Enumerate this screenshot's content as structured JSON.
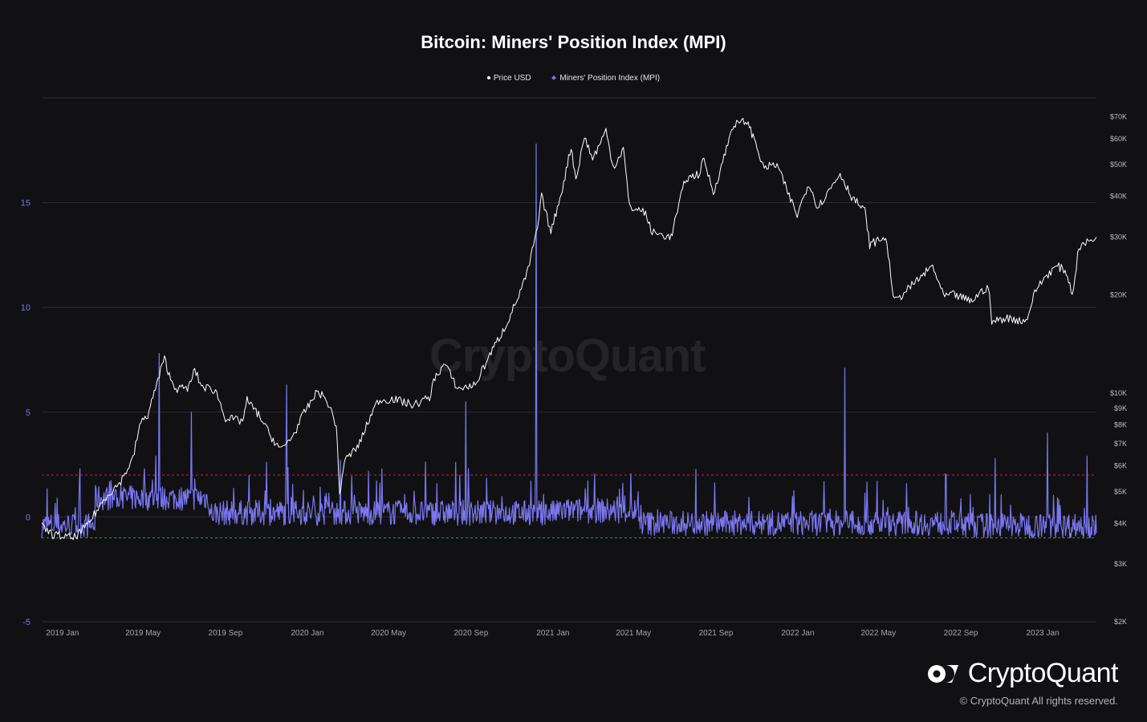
{
  "title": "Bitcoin: Miners' Position Index (MPI)",
  "legend": [
    {
      "label": "Price USD",
      "color": "#ffffff"
    },
    {
      "label": "Miners' Position Index (MPI)",
      "color": "#7b76f0"
    }
  ],
  "watermark": "CryptoQuant",
  "brand": {
    "name": "CryptoQuant",
    "copyright": "© CryptoQuant All rights reserved."
  },
  "colors": {
    "background": "#111114",
    "mpi": "#7b76f0",
    "price": "#ffffff",
    "upper_threshold": "#b03030",
    "lower_threshold": "#3d8f3d",
    "grid": "#2e2e33"
  },
  "chart_data": {
    "type": "line",
    "title": "Bitcoin: Miners' Position Index (MPI)",
    "x_range": [
      "2018-12-25",
      "2023-04-15"
    ],
    "x_tick_labels": [
      "2019 Jan",
      "2019 May",
      "2019 Sep",
      "2020 Jan",
      "2020 May",
      "2020 Sep",
      "2021 Jan",
      "2021 May",
      "2021 Sep",
      "2022 Jan",
      "2022 May",
      "2022 Sep",
      "2023 Jan"
    ],
    "x_tick_dates": [
      "2019-01-01",
      "2019-05-01",
      "2019-09-01",
      "2020-01-01",
      "2020-05-01",
      "2020-09-01",
      "2021-01-01",
      "2021-05-01",
      "2021-09-01",
      "2022-01-01",
      "2022-05-01",
      "2022-09-01",
      "2023-01-01"
    ],
    "y_left": {
      "label": "",
      "ticks": [
        15,
        10,
        5,
        0,
        -5
      ],
      "range": [
        -5,
        20
      ]
    },
    "y_right": {
      "label": "",
      "scale": "log",
      "range": [
        2000,
        80000
      ],
      "ticks": [
        70000,
        60000,
        50000,
        40000,
        30000,
        20000,
        10000,
        9000,
        8000,
        7000,
        6000,
        5000,
        4000,
        3000,
        2000
      ],
      "tick_labels": [
        "$70K",
        "$60K",
        "$50K",
        "$40K",
        "$30K",
        "$20K",
        "$10K",
        "$9K",
        "$8K",
        "$7K",
        "$6K",
        "$5K",
        "$4K",
        "$3K",
        "$2K"
      ]
    },
    "threshold_lines": [
      2,
      -1
    ],
    "grid": true,
    "legend_position": "top-center",
    "series": [
      {
        "name": "Price USD",
        "axis": "right",
        "points": [
          [
            "2018-12-25",
            3900
          ],
          [
            "2019-01-10",
            3700
          ],
          [
            "2019-02-10",
            3600
          ],
          [
            "2019-03-01",
            3900
          ],
          [
            "2019-04-02",
            4900
          ],
          [
            "2019-04-20",
            5300
          ],
          [
            "2019-05-10",
            6300
          ],
          [
            "2019-05-20",
            8000
          ],
          [
            "2019-06-01",
            8600
          ],
          [
            "2019-06-26",
            12800
          ],
          [
            "2019-07-05",
            11000
          ],
          [
            "2019-07-15",
            10300
          ],
          [
            "2019-08-01",
            10400
          ],
          [
            "2019-08-10",
            11800
          ],
          [
            "2019-08-20",
            10500
          ],
          [
            "2019-09-10",
            10200
          ],
          [
            "2019-09-25",
            8400
          ],
          [
            "2019-10-20",
            8200
          ],
          [
            "2019-10-27",
            9500
          ],
          [
            "2019-11-15",
            8500
          ],
          [
            "2019-12-01",
            7400
          ],
          [
            "2019-12-17",
            6700
          ],
          [
            "2020-01-05",
            7500
          ],
          [
            "2020-01-20",
            8700
          ],
          [
            "2020-02-10",
            10200
          ],
          [
            "2020-02-25",
            9300
          ],
          [
            "2020-03-08",
            8000
          ],
          [
            "2020-03-13",
            4900
          ],
          [
            "2020-03-20",
            6200
          ],
          [
            "2020-04-10",
            6900
          ],
          [
            "2020-04-30",
            8700
          ],
          [
            "2020-05-10",
            9500
          ],
          [
            "2020-06-01",
            9600
          ],
          [
            "2020-07-01",
            9200
          ],
          [
            "2020-07-25",
            9700
          ],
          [
            "2020-08-02",
            11200
          ],
          [
            "2020-08-17",
            12300
          ],
          [
            "2020-09-05",
            10300
          ],
          [
            "2020-10-01",
            10600
          ],
          [
            "2020-10-21",
            12900
          ],
          [
            "2020-11-15",
            16000
          ],
          [
            "2020-12-01",
            19000
          ],
          [
            "2020-12-17",
            23000
          ],
          [
            "2021-01-02",
            32000
          ],
          [
            "2021-01-08",
            40000
          ],
          [
            "2021-01-22",
            31000
          ],
          [
            "2021-02-10",
            44000
          ],
          [
            "2021-02-21",
            57000
          ],
          [
            "2021-02-28",
            45000
          ],
          [
            "2021-03-13",
            61000
          ],
          [
            "2021-03-25",
            52000
          ],
          [
            "2021-04-14",
            63500
          ],
          [
            "2021-04-25",
            49000
          ],
          [
            "2021-05-10",
            56000
          ],
          [
            "2021-05-19",
            37000
          ],
          [
            "2021-06-10",
            36000
          ],
          [
            "2021-06-22",
            31000
          ],
          [
            "2021-07-20",
            30000
          ],
          [
            "2021-08-10",
            45000
          ],
          [
            "2021-08-31",
            47000
          ],
          [
            "2021-09-07",
            52000
          ],
          [
            "2021-09-21",
            41000
          ],
          [
            "2021-10-05",
            51000
          ],
          [
            "2021-10-20",
            66000
          ],
          [
            "2021-11-10",
            68000
          ],
          [
            "2021-11-25",
            57000
          ],
          [
            "2021-12-04",
            49000
          ],
          [
            "2021-12-25",
            50000
          ],
          [
            "2022-01-10",
            41000
          ],
          [
            "2022-01-24",
            35000
          ],
          [
            "2022-02-10",
            44000
          ],
          [
            "2022-02-24",
            37000
          ],
          [
            "2022-03-29",
            47000
          ],
          [
            "2022-04-15",
            40000
          ],
          [
            "2022-05-05",
            36000
          ],
          [
            "2022-05-12",
            28500
          ],
          [
            "2022-06-05",
            30000
          ],
          [
            "2022-06-18",
            19000
          ],
          [
            "2022-07-10",
            21000
          ],
          [
            "2022-08-14",
            24500
          ],
          [
            "2022-08-30",
            19800
          ],
          [
            "2022-09-15",
            20000
          ],
          [
            "2022-10-10",
            19100
          ],
          [
            "2022-10-30",
            20800
          ],
          [
            "2022-11-05",
            21200
          ],
          [
            "2022-11-10",
            16500
          ],
          [
            "2022-12-01",
            17000
          ],
          [
            "2022-12-31",
            16600
          ],
          [
            "2023-01-15",
            20800
          ],
          [
            "2023-01-31",
            23000
          ],
          [
            "2023-02-16",
            24500
          ],
          [
            "2023-03-01",
            23500
          ],
          [
            "2023-03-10",
            20000
          ],
          [
            "2023-03-20",
            28000
          ],
          [
            "2023-04-15",
            30000
          ]
        ]
      },
      {
        "name": "Miners' Position Index (MPI)",
        "axis": "left",
        "color": "#7b76f0",
        "notable_peaks": [
          [
            "2019-02-20",
            2.3
          ],
          [
            "2019-06-18",
            7.8
          ],
          [
            "2019-08-05",
            5.0
          ],
          [
            "2019-12-25",
            6.3
          ],
          [
            "2020-09-17",
            5.5
          ],
          [
            "2020-12-31",
            17.8
          ],
          [
            "2022-04-05",
            7.1
          ],
          [
            "2022-11-15",
            2.8
          ],
          [
            "2023-02-01",
            4.0
          ],
          [
            "2023-04-01",
            2.9
          ]
        ],
        "typical_range": [
          -1.2,
          2.0
        ]
      }
    ]
  }
}
